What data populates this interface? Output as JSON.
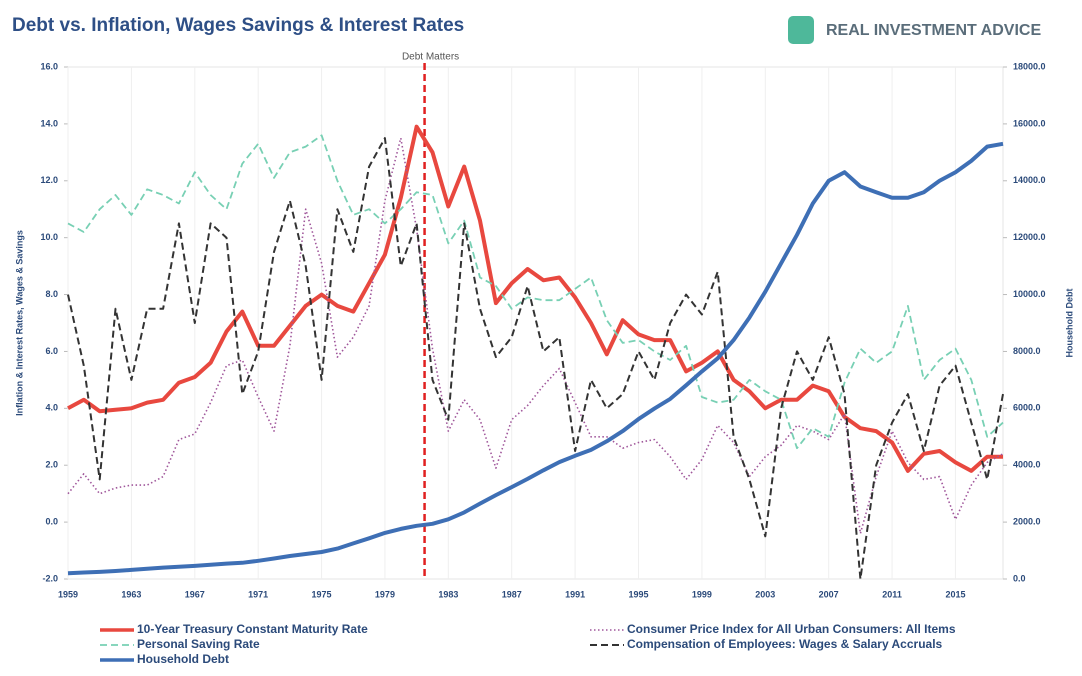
{
  "brand": "REAL INVESTMENT ADVICE",
  "chart_data": {
    "type": "line",
    "title": "Debt vs. Inflation, Wages Savings & Interest Rates",
    "ylabel": "Inflation & Interest Rates, Wages & Savings",
    "y2label": "Household Debt",
    "annotation": {
      "text": "Debt Matters",
      "x": 1981.5,
      "color": "#e02020"
    },
    "x": [
      1959,
      1960,
      1961,
      1962,
      1963,
      1964,
      1965,
      1966,
      1967,
      1968,
      1969,
      1970,
      1971,
      1972,
      1973,
      1974,
      1975,
      1976,
      1977,
      1978,
      1979,
      1980,
      1981,
      1982,
      1983,
      1984,
      1985,
      1986,
      1987,
      1988,
      1989,
      1990,
      1991,
      1992,
      1993,
      1994,
      1995,
      1996,
      1997,
      1998,
      1999,
      2000,
      2001,
      2002,
      2003,
      2004,
      2005,
      2006,
      2007,
      2008,
      2009,
      2010,
      2011,
      2012,
      2013,
      2014,
      2015,
      2016,
      2017,
      2018
    ],
    "xlim": [
      1959,
      2018
    ],
    "xticks": [
      1959,
      1963,
      1967,
      1971,
      1975,
      1979,
      1983,
      1987,
      1991,
      1995,
      1999,
      2003,
      2007,
      2011,
      2015
    ],
    "ylim": [
      -2,
      16
    ],
    "yticks": [
      {
        "value": -2,
        "label": "-2.0"
      },
      {
        "value": 0,
        "label": "0.0"
      },
      {
        "value": 2,
        "label": "2.0"
      },
      {
        "value": 4,
        "label": "4.0"
      },
      {
        "value": 6,
        "label": "6.0"
      },
      {
        "value": 8,
        "label": "8.0"
      },
      {
        "value": 10,
        "label": "10.0"
      },
      {
        "value": 12,
        "label": "12.0"
      },
      {
        "value": 14,
        "label": "14.0"
      },
      {
        "value": 16,
        "label": "16.0"
      }
    ],
    "y2lim": [
      0,
      18000
    ],
    "y2ticks": [
      {
        "value": 0,
        "label": "0.0"
      },
      {
        "value": 2000,
        "label": "2000.0"
      },
      {
        "value": 4000,
        "label": "4000.0"
      },
      {
        "value": 6000,
        "label": "6000.0"
      },
      {
        "value": 8000,
        "label": "8000.0"
      },
      {
        "value": 10000,
        "label": "10000.0"
      },
      {
        "value": 12000,
        "label": "12000.0"
      },
      {
        "value": 14000,
        "label": "14000.0"
      },
      {
        "value": 16000,
        "label": "16000.0"
      },
      {
        "value": 18000,
        "label": "18000.0"
      }
    ],
    "grid": true,
    "series": [
      {
        "name": "10-Year Treasury Constant Maturity Rate",
        "color": "#e8483f",
        "style": "solid",
        "width": 4,
        "values": [
          4.0,
          4.3,
          3.9,
          3.95,
          4.0,
          4.2,
          4.3,
          4.9,
          5.1,
          5.6,
          6.7,
          7.4,
          6.2,
          6.2,
          6.9,
          7.6,
          8.0,
          7.6,
          7.4,
          8.4,
          9.4,
          11.4,
          13.9,
          13.0,
          11.1,
          12.5,
          10.6,
          7.7,
          8.4,
          8.9,
          8.5,
          8.6,
          7.9,
          7.0,
          5.9,
          7.1,
          6.6,
          6.4,
          6.4,
          5.3,
          5.6,
          6.0,
          5.0,
          4.6,
          4.0,
          4.3,
          4.3,
          4.8,
          4.6,
          3.7,
          3.3,
          3.2,
          2.8,
          1.8,
          2.4,
          2.5,
          2.1,
          1.8,
          2.3,
          2.3
        ]
      },
      {
        "name": "Consumer Price Index for All Urban Consumers: All Items",
        "color": "#a0579b",
        "style": "dotted",
        "width": 1.6,
        "values": [
          1.0,
          1.7,
          1.0,
          1.2,
          1.3,
          1.3,
          1.6,
          2.9,
          3.1,
          4.2,
          5.5,
          5.7,
          4.4,
          3.2,
          6.2,
          11.0,
          9.1,
          5.8,
          6.5,
          7.6,
          11.3,
          13.5,
          10.3,
          6.1,
          3.2,
          4.3,
          3.6,
          1.9,
          3.6,
          4.1,
          4.8,
          5.4,
          4.2,
          3.0,
          3.0,
          2.6,
          2.8,
          2.9,
          2.3,
          1.5,
          2.2,
          3.4,
          2.8,
          1.6,
          2.3,
          2.7,
          3.4,
          3.2,
          2.9,
          3.8,
          -0.4,
          1.6,
          3.2,
          2.1,
          1.5,
          1.6,
          0.1,
          1.3,
          2.1,
          2.4
        ]
      },
      {
        "name": "Personal Saving Rate",
        "color": "#78d0b4",
        "style": "dashed",
        "width": 1.8,
        "values": [
          10.5,
          10.2,
          11.0,
          11.5,
          10.8,
          11.7,
          11.5,
          11.2,
          12.3,
          11.5,
          11.0,
          12.6,
          13.3,
          12.1,
          13.0,
          13.2,
          13.6,
          12.0,
          10.8,
          11.0,
          10.5,
          11.0,
          11.6,
          11.5,
          9.8,
          10.6,
          8.6,
          8.3,
          7.5,
          7.9,
          7.8,
          7.8,
          8.2,
          8.6,
          7.1,
          6.3,
          6.4,
          6.0,
          5.7,
          6.2,
          4.4,
          4.2,
          4.3,
          5.0,
          4.6,
          4.3,
          2.6,
          3.3,
          3.0,
          4.9,
          6.1,
          5.6,
          6.0,
          7.6,
          5.0,
          5.7,
          6.1,
          5.0,
          3.0,
          3.5
        ]
      },
      {
        "name": "Compensation of Employees: Wages & Salary Accruals",
        "color": "#333333",
        "style": "dashed",
        "width": 2,
        "values": [
          8.0,
          5.5,
          1.5,
          7.5,
          5.0,
          7.5,
          7.5,
          10.5,
          7.0,
          10.5,
          10.0,
          4.5,
          6.0,
          9.5,
          11.3,
          9.0,
          5.0,
          11.0,
          9.5,
          12.5,
          13.5,
          9.0,
          10.5,
          5.0,
          3.6,
          10.5,
          7.5,
          5.8,
          6.5,
          8.3,
          6.0,
          6.5,
          2.5,
          5.0,
          4.0,
          4.5,
          6.0,
          5.0,
          7.0,
          8.0,
          7.3,
          8.8,
          3.0,
          1.5,
          -0.5,
          4.0,
          6.0,
          5.0,
          6.5,
          4.5,
          -2.0,
          2.0,
          3.5,
          4.5,
          2.5,
          4.8,
          5.5,
          3.5,
          1.5,
          4.5
        ]
      },
      {
        "name": "Household Debt",
        "color": "#3e6fb5",
        "style": "solid",
        "width": 4,
        "axis": "y2",
        "values": [
          200,
          230,
          250,
          280,
          320,
          360,
          400,
          430,
          460,
          500,
          540,
          570,
          640,
          720,
          810,
          880,
          950,
          1070,
          1250,
          1430,
          1620,
          1760,
          1870,
          1940,
          2100,
          2340,
          2650,
          2950,
          3230,
          3520,
          3820,
          4110,
          4330,
          4540,
          4840,
          5200,
          5620,
          5990,
          6330,
          6810,
          7300,
          7760,
          8400,
          9190,
          10100,
          11100,
          12100,
          13200,
          14000,
          14300,
          13800,
          13600,
          13400,
          13400,
          13600,
          14000,
          14300,
          14700,
          15200,
          15300
        ]
      }
    ]
  }
}
